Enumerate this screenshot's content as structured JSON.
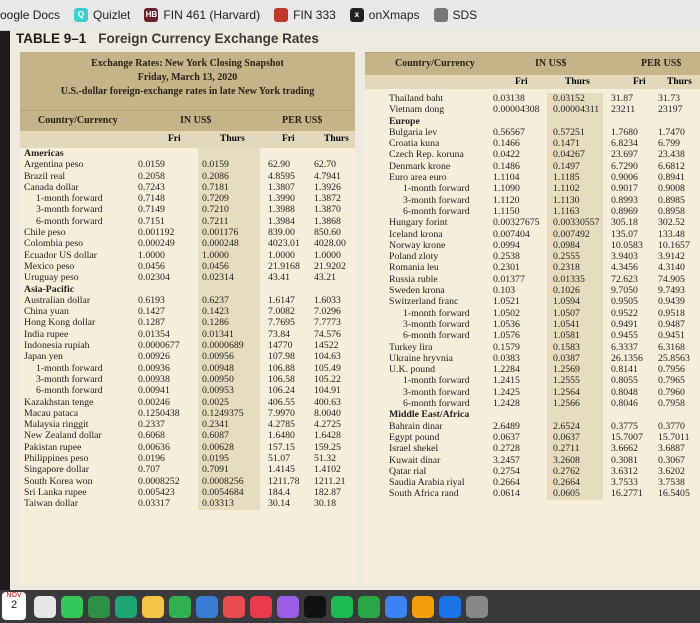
{
  "bookmarks": [
    {
      "label": "oogle Docs",
      "icon": "google-docs-icon",
      "color": "#4285f4",
      "glyph": ""
    },
    {
      "label": "Quizlet",
      "icon": "quizlet-icon",
      "color": "#3ccfcf",
      "glyph": "Q"
    },
    {
      "label": "FIN 461 (Harvard)",
      "icon": "hbs-icon",
      "color": "#6b1f2a",
      "glyph": "HB"
    },
    {
      "label": "FIN 333",
      "icon": "fin-icon",
      "color": "#c0392b",
      "glyph": ""
    },
    {
      "label": "onXmaps",
      "icon": "onxmaps-icon",
      "color": "#222",
      "glyph": "x"
    },
    {
      "label": "SDS",
      "icon": "globe-icon",
      "color": "#777",
      "glyph": ""
    }
  ],
  "table": {
    "number": "TABLE 9–1",
    "title": "Foreign Currency Exchange Rates",
    "snapshot": [
      "Exchange Rates: New York Closing Snapshot",
      "Friday, March 13, 2020",
      "U.S.-dollar foreign-exchange rates in late New York trading"
    ],
    "col_country": "Country/Currency",
    "col_in_us": "IN US$",
    "col_per_us": "PER US$",
    "sub_fri": "Fri",
    "sub_thurs": "Thurs"
  },
  "left_rows": [
    [
      "Americas",
      "",
      "",
      "",
      "",
      true
    ],
    [
      "Argentina peso",
      "0.0159",
      "0.0159",
      "62.90",
      "62.70",
      false
    ],
    [
      "Brazil real",
      "0.2058",
      "0.2086",
      "4.8595",
      "4.7941",
      false
    ],
    [
      "Canada dollar",
      "0.7243",
      "0.7181",
      "1.3807",
      "1.3926",
      false
    ],
    [
      "1-month forward",
      "0.7148",
      "0.7209",
      "1.3990",
      "1.3872",
      false,
      1
    ],
    [
      "3-month forward",
      "0.7149",
      "0.7210",
      "1.3988",
      "1.3870",
      false,
      1
    ],
    [
      "6-month forward",
      "0.7151",
      "0.7211",
      "1.3984",
      "1.3868",
      false,
      1
    ],
    [
      "Chile peso",
      "0.001192",
      "0.001176",
      "839.00",
      "850.60",
      false
    ],
    [
      "Colombia peso",
      "0.000249",
      "0.000248",
      "4023.01",
      "4028.00",
      false
    ],
    [
      "Ecuador US dollar",
      "1.0000",
      "1.0000",
      "1.0000",
      "1.0000",
      false
    ],
    [
      "Mexico peso",
      "0.0456",
      "0.0456",
      "21.9168",
      "21.9202",
      false
    ],
    [
      "Uruguay peso",
      "0.02304",
      "0.02314",
      "43.41",
      "43.21",
      false
    ],
    [
      "Asia-Pacific",
      "",
      "",
      "",
      "",
      true
    ],
    [
      "Australian dollar",
      "0.6193",
      "0.6237",
      "1.6147",
      "1.6033",
      false
    ],
    [
      "China yuan",
      "0.1427",
      "0.1423",
      "7.0082",
      "7.0296",
      false
    ],
    [
      "Hong Kong dollar",
      "0.1287",
      "0.1286",
      "7.7695",
      "7.7773",
      false
    ],
    [
      "India rupee",
      "0.01354",
      "0.01341",
      "73.84",
      "74.576",
      false
    ],
    [
      "Indonesia rupiah",
      "0.0000677",
      "0.0000689",
      "14770",
      "14522",
      false
    ],
    [
      "Japan yen",
      "0.00926",
      "0.00956",
      "107.98",
      "104.63",
      false
    ],
    [
      "1-month forward",
      "0.00936",
      "0.00948",
      "106.88",
      "105.49",
      false,
      1
    ],
    [
      "3-month forward",
      "0.00938",
      "0.00950",
      "106.58",
      "105.22",
      false,
      1
    ],
    [
      "6-month forward",
      "0.00941",
      "0.00953",
      "106.24",
      "104.91",
      false,
      1
    ],
    [
      "Kazakhstan tenge",
      "0.00246",
      "0.0025",
      "406.55",
      "400.63",
      false
    ],
    [
      "Macau pataca",
      "0.1250438",
      "0.1249375",
      "7.9970",
      "8.0040",
      false
    ],
    [
      "Malaysia ringgit",
      "0.2337",
      "0.2341",
      "4.2785",
      "4.2725",
      false
    ],
    [
      "New Zealand dollar",
      "0.6068",
      "0.6087",
      "1.6480",
      "1.6428",
      false
    ],
    [
      "Pakistan rupee",
      "0.00636",
      "0.00628",
      "157.15",
      "159.25",
      false
    ],
    [
      "Philippines peso",
      "0.0196",
      "0.0195",
      "51.07",
      "51.32",
      false
    ],
    [
      "Singapore dollar",
      "0.707",
      "0.7091",
      "1.4145",
      "1.4102",
      false
    ],
    [
      "South Korea won",
      "0.0008252",
      "0.0008256",
      "1211.78",
      "1211.21",
      false
    ],
    [
      "Sri Lanka rupee",
      "0.005423",
      "0.0054684",
      "184.4",
      "182.87",
      false
    ],
    [
      "Taiwan dollar",
      "0.03317",
      "0.03313",
      "30.14",
      "30.18",
      false
    ]
  ],
  "right_rows": [
    [
      "Thailand baht",
      "0.03138",
      "0.03152",
      "31.87",
      "31.73",
      false
    ],
    [
      "Vietnam dong",
      "0.00004308",
      "0.00004311",
      "23211",
      "23197",
      false
    ],
    [
      "Europe",
      "",
      "",
      "",
      "",
      true
    ],
    [
      "Bulgaria lev",
      "0.56567",
      "0.57251",
      "1.7680",
      "1.7470",
      false
    ],
    [
      "Croatia kuna",
      "0.1466",
      "0.1471",
      "6.8234",
      "6.799",
      false
    ],
    [
      "Czech Rep. koruna",
      "0.0422",
      "0.04267",
      "23.697",
      "23.438",
      false
    ],
    [
      "Denmark krone",
      "0.1486",
      "0.1497",
      "6.7290",
      "6.6812",
      false
    ],
    [
      "Euro area euro",
      "1.1104",
      "1.1185",
      "0.9006",
      "0.8941",
      false
    ],
    [
      "1-month forward",
      "1.1090",
      "1.1102",
      "0.9017",
      "0.9008",
      false,
      1
    ],
    [
      "3-month forward",
      "1.1120",
      "1.1130",
      "0.8993",
      "0.8985",
      false,
      1
    ],
    [
      "6-month forward",
      "1.1150",
      "1.1163",
      "0.8969",
      "0.8958",
      false,
      1
    ],
    [
      "Hungary forint",
      "0.00327675",
      "0.00330557",
      "305.18",
      "302.52",
      false
    ],
    [
      "Iceland krona",
      "0.007404",
      "0.007492",
      "135.07",
      "133.48",
      false
    ],
    [
      "Norway krone",
      "0.0994",
      "0.0984",
      "10.0583",
      "10.1657",
      false
    ],
    [
      "Poland zloty",
      "0.2538",
      "0.2555",
      "3.9403",
      "3.9142",
      false
    ],
    [
      "Romania leu",
      "0.2301",
      "0.2318",
      "4.3456",
      "4.3140",
      false
    ],
    [
      "Russia ruble",
      "0.01377",
      "0.01335",
      "72.623",
      "74.905",
      false
    ],
    [
      "Sweden krona",
      "0.103",
      "0.1026",
      "9.7050",
      "9.7493",
      false
    ],
    [
      "Switzerland franc",
      "1.0521",
      "1.0594",
      "0.9505",
      "0.9439",
      false
    ],
    [
      "1-month forward",
      "1.0502",
      "1.0507",
      "0.9522",
      "0.9518",
      false,
      1
    ],
    [
      "3-month forward",
      "1.0536",
      "1.0541",
      "0.9491",
      "0.9487",
      false,
      1
    ],
    [
      "6-month forward",
      "1.0576",
      "1.0581",
      "0.9455",
      "0.9451",
      false,
      1
    ],
    [
      "Turkey lira",
      "0.1579",
      "0.1583",
      "6.3337",
      "6.3168",
      false
    ],
    [
      "Ukraine hryvnia",
      "0.0383",
      "0.0387",
      "26.1356",
      "25.8563",
      false
    ],
    [
      "U.K. pound",
      "1.2284",
      "1.2569",
      "0.8141",
      "0.7956",
      false
    ],
    [
      "1-month forward",
      "1.2415",
      "1.2555",
      "0.8055",
      "0.7965",
      false,
      1
    ],
    [
      "3-month forward",
      "1.2425",
      "1.2564",
      "0.8048",
      "0.7960",
      false,
      1
    ],
    [
      "6-month forward",
      "1.2428",
      "1.2566",
      "0.8046",
      "0.7958",
      false,
      1
    ],
    [
      "Middle East/Africa",
      "",
      "",
      "",
      "",
      true
    ],
    [
      "Bahrain dinar",
      "2.6489",
      "2.6524",
      "0.3775",
      "0.3770",
      false
    ],
    [
      "Egypt pound",
      "0.0637",
      "0.0637",
      "15.7007",
      "15.7011",
      false
    ],
    [
      "Israel shekel",
      "0.2728",
      "0.2711",
      "3.6662",
      "3.6887",
      false
    ],
    [
      "Kuwait dinar",
      "3.2457",
      "3.2608",
      "0.3081",
      "0.3067",
      false
    ],
    [
      "Qatar rial",
      "0.2754",
      "0.2762",
      "3.6312",
      "3.6202",
      false
    ],
    [
      "Saudia Arabia riyal",
      "0.2664",
      "0.2664",
      "3.7533",
      "3.7538",
      false
    ],
    [
      "South Africa rand",
      "0.0614",
      "0.0605",
      "16.2771",
      "16.5405",
      false
    ]
  ],
  "dock": {
    "calendar_month": "NOV",
    "calendar_day": "2"
  }
}
